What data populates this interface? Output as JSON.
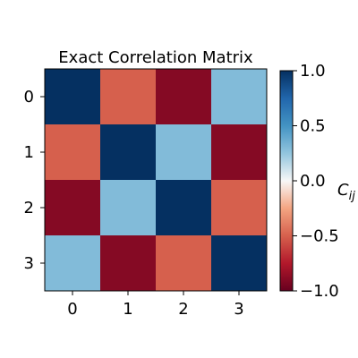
{
  "chart_data": {
    "type": "heatmap",
    "title": "Exact Correlation Matrix",
    "x_categories": [
      "0",
      "1",
      "2",
      "3"
    ],
    "y_categories": [
      "0",
      "1",
      "2",
      "3"
    ],
    "values": [
      [
        1.0,
        -0.5,
        -0.9,
        0.3
      ],
      [
        -0.5,
        1.0,
        0.3,
        -0.9
      ],
      [
        -0.9,
        0.3,
        1.0,
        -0.5
      ],
      [
        0.3,
        -0.9,
        -0.5,
        1.0
      ]
    ],
    "colorbar": {
      "label_main": "C",
      "label_sub": "ij",
      "vmin": -1.0,
      "vmax": 1.0,
      "ticks": [
        1.0,
        0.5,
        0.0,
        -0.5,
        -1.0
      ],
      "tick_labels": [
        "1.0",
        "0.5",
        "0.0",
        "−0.5",
        "−1.0"
      ],
      "colormap": "RdBu"
    }
  }
}
